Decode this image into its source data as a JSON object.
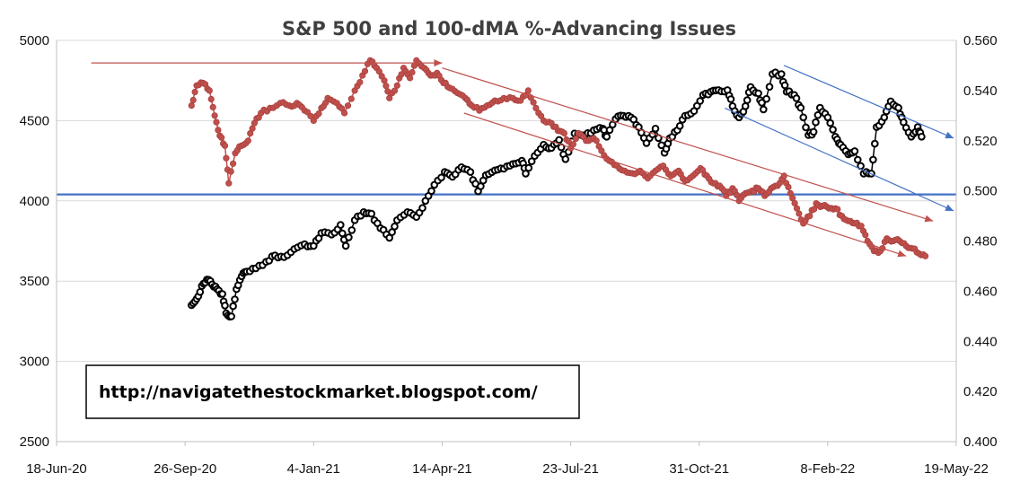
{
  "chart_data": {
    "type": "line",
    "title": "S&P 500 and 100-dMA %-Advancing Issues",
    "annotation": "http://navigatethestockmarket.blogspot.com/",
    "x_tick_labels": [
      "18-Jun-20",
      "26-Sep-20",
      "4-Jan-21",
      "14-Apr-21",
      "23-Jul-21",
      "31-Oct-21",
      "8-Feb-22",
      "19-May-22"
    ],
    "x_tick_dates": [
      "2020-06-18",
      "2020-09-26",
      "2021-01-04",
      "2021-04-14",
      "2021-07-23",
      "2021-10-31",
      "2022-02-08",
      "2022-05-19"
    ],
    "xlim": [
      "2020-06-18",
      "2022-05-19"
    ],
    "y_left_ticks": [
      "2500",
      "3000",
      "3500",
      "4000",
      "4500",
      "5000"
    ],
    "y_left_lim": [
      2500,
      5000
    ],
    "y_right_ticks": [
      "0.400",
      "0.420",
      "0.440",
      "0.460",
      "0.480",
      "0.500",
      "0.520",
      "0.540",
      "0.560"
    ],
    "y_right_lim": [
      0.4,
      0.56
    ],
    "grid": "horizontal",
    "legend": "none",
    "series": [
      {
        "axis": "left",
        "color": "#000000",
        "marker": "hollow-circle",
        "points": [
          [
            "2020-10-01",
            3350
          ],
          [
            "2020-10-05",
            3390
          ],
          [
            "2020-10-09",
            3470
          ],
          [
            "2020-10-13",
            3510
          ],
          [
            "2020-10-17",
            3480
          ],
          [
            "2020-10-21",
            3450
          ],
          [
            "2020-10-25",
            3420
          ],
          [
            "2020-10-28",
            3300
          ],
          [
            "2020-11-01",
            3280
          ],
          [
            "2020-11-05",
            3450
          ],
          [
            "2020-11-09",
            3530
          ],
          [
            "2020-11-13",
            3560
          ],
          [
            "2020-11-20",
            3580
          ],
          [
            "2020-11-28",
            3620
          ],
          [
            "2020-12-05",
            3660
          ],
          [
            "2020-12-12",
            3650
          ],
          [
            "2020-12-20",
            3700
          ],
          [
            "2020-12-28",
            3730
          ],
          [
            "2021-01-04",
            3720
          ],
          [
            "2021-01-10",
            3800
          ],
          [
            "2021-01-18",
            3790
          ],
          [
            "2021-01-25",
            3850
          ],
          [
            "2021-01-29",
            3720
          ],
          [
            "2021-02-05",
            3880
          ],
          [
            "2021-02-12",
            3930
          ],
          [
            "2021-02-18",
            3920
          ],
          [
            "2021-02-25",
            3830
          ],
          [
            "2021-03-04",
            3770
          ],
          [
            "2021-03-10",
            3880
          ],
          [
            "2021-03-18",
            3930
          ],
          [
            "2021-03-25",
            3900
          ],
          [
            "2021-04-01",
            4000
          ],
          [
            "2021-04-08",
            4100
          ],
          [
            "2021-04-16",
            4180
          ],
          [
            "2021-04-22",
            4150
          ],
          [
            "2021-04-29",
            4210
          ],
          [
            "2021-05-06",
            4180
          ],
          [
            "2021-05-12",
            4060
          ],
          [
            "2021-05-18",
            4160
          ],
          [
            "2021-05-25",
            4190
          ],
          [
            "2021-06-01",
            4200
          ],
          [
            "2021-06-08",
            4230
          ],
          [
            "2021-06-15",
            4250
          ],
          [
            "2021-06-18",
            4170
          ],
          [
            "2021-06-25",
            4280
          ],
          [
            "2021-07-02",
            4350
          ],
          [
            "2021-07-08",
            4330
          ],
          [
            "2021-07-14",
            4380
          ],
          [
            "2021-07-19",
            4260
          ],
          [
            "2021-07-26",
            4420
          ],
          [
            "2021-08-03",
            4410
          ],
          [
            "2021-08-10",
            4440
          ],
          [
            "2021-08-17",
            4450
          ],
          [
            "2021-08-20",
            4400
          ],
          [
            "2021-08-27",
            4510
          ],
          [
            "2021-09-02",
            4530
          ],
          [
            "2021-09-08",
            4520
          ],
          [
            "2021-09-14",
            4460
          ],
          [
            "2021-09-20",
            4360
          ],
          [
            "2021-09-27",
            4450
          ],
          [
            "2021-10-04",
            4300
          ],
          [
            "2021-10-08",
            4390
          ],
          [
            "2021-10-14",
            4440
          ],
          [
            "2021-10-20",
            4530
          ],
          [
            "2021-10-27",
            4560
          ],
          [
            "2021-11-03",
            4660
          ],
          [
            "2021-11-09",
            4680
          ],
          [
            "2021-11-15",
            4690
          ],
          [
            "2021-11-22",
            4690
          ],
          [
            "2021-11-26",
            4590
          ],
          [
            "2021-12-01",
            4520
          ],
          [
            "2021-12-06",
            4590
          ],
          [
            "2021-12-10",
            4710
          ],
          [
            "2021-12-16",
            4670
          ],
          [
            "2021-12-20",
            4570
          ],
          [
            "2021-12-27",
            4790
          ],
          [
            "2022-01-03",
            4790
          ],
          [
            "2022-01-07",
            4680
          ],
          [
            "2022-01-13",
            4660
          ],
          [
            "2022-01-18",
            4580
          ],
          [
            "2022-01-24",
            4410
          ],
          [
            "2022-01-28",
            4430
          ],
          [
            "2022-02-02",
            4580
          ],
          [
            "2022-02-08",
            4520
          ],
          [
            "2022-02-14",
            4400
          ],
          [
            "2022-02-18",
            4350
          ],
          [
            "2022-02-24",
            4290
          ],
          [
            "2022-03-01",
            4310
          ],
          [
            "2022-03-08",
            4170
          ],
          [
            "2022-03-14",
            4170
          ],
          [
            "2022-03-18",
            4460
          ],
          [
            "2022-03-24",
            4520
          ],
          [
            "2022-03-29",
            4620
          ],
          [
            "2022-04-04",
            4580
          ],
          [
            "2022-04-08",
            4490
          ],
          [
            "2022-04-14",
            4400
          ],
          [
            "2022-04-19",
            4460
          ],
          [
            "2022-04-22",
            4400
          ]
        ]
      },
      {
        "axis": "right",
        "color": "#c0504d",
        "marker": "filled-circle",
        "points": [
          [
            "2020-10-01",
            0.534
          ],
          [
            "2020-10-05",
            0.542
          ],
          [
            "2020-10-10",
            0.543
          ],
          [
            "2020-10-15",
            0.54
          ],
          [
            "2020-10-19",
            0.53
          ],
          [
            "2020-10-23",
            0.522
          ],
          [
            "2020-10-27",
            0.518
          ],
          [
            "2020-10-30",
            0.503
          ],
          [
            "2020-11-04",
            0.515
          ],
          [
            "2020-11-09",
            0.518
          ],
          [
            "2020-11-14",
            0.52
          ],
          [
            "2020-11-19",
            0.527
          ],
          [
            "2020-11-24",
            0.531
          ],
          [
            "2020-12-01",
            0.533
          ],
          [
            "2020-12-09",
            0.535
          ],
          [
            "2020-12-16",
            0.534
          ],
          [
            "2020-12-22",
            0.535
          ],
          [
            "2020-12-28",
            0.532
          ],
          [
            "2021-01-04",
            0.528
          ],
          [
            "2021-01-10",
            0.533
          ],
          [
            "2021-01-15",
            0.537
          ],
          [
            "2021-01-22",
            0.535
          ],
          [
            "2021-01-28",
            0.531
          ],
          [
            "2021-02-05",
            0.54
          ],
          [
            "2021-02-11",
            0.546
          ],
          [
            "2021-02-17",
            0.552
          ],
          [
            "2021-02-22",
            0.549
          ],
          [
            "2021-02-28",
            0.544
          ],
          [
            "2021-03-04",
            0.537
          ],
          [
            "2021-03-10",
            0.542
          ],
          [
            "2021-03-15",
            0.549
          ],
          [
            "2021-03-20",
            0.545
          ],
          [
            "2021-03-25",
            0.552
          ],
          [
            "2021-03-31",
            0.549
          ],
          [
            "2021-04-05",
            0.546
          ],
          [
            "2021-04-10",
            0.547
          ],
          [
            "2021-04-15",
            0.543
          ],
          [
            "2021-04-20",
            0.541
          ],
          [
            "2021-04-26",
            0.539
          ],
          [
            "2021-05-02",
            0.537
          ],
          [
            "2021-05-07",
            0.534
          ],
          [
            "2021-05-13",
            0.532
          ],
          [
            "2021-05-19",
            0.534
          ],
          [
            "2021-05-25",
            0.536
          ],
          [
            "2021-06-01",
            0.537
          ],
          [
            "2021-06-08",
            0.537
          ],
          [
            "2021-06-14",
            0.536
          ],
          [
            "2021-06-20",
            0.54
          ],
          [
            "2021-06-26",
            0.533
          ],
          [
            "2021-07-02",
            0.528
          ],
          [
            "2021-07-08",
            0.527
          ],
          [
            "2021-07-13",
            0.524
          ],
          [
            "2021-07-18",
            0.523
          ],
          [
            "2021-07-23",
            0.517
          ],
          [
            "2021-07-29",
            0.523
          ],
          [
            "2021-08-04",
            0.52
          ],
          [
            "2021-08-10",
            0.521
          ],
          [
            "2021-08-16",
            0.516
          ],
          [
            "2021-08-22",
            0.512
          ],
          [
            "2021-08-28",
            0.51
          ],
          [
            "2021-09-03",
            0.508
          ],
          [
            "2021-09-09",
            0.507
          ],
          [
            "2021-09-15",
            0.508
          ],
          [
            "2021-09-21",
            0.505
          ],
          [
            "2021-09-27",
            0.508
          ],
          [
            "2021-10-03",
            0.51
          ],
          [
            "2021-10-09",
            0.506
          ],
          [
            "2021-10-15",
            0.508
          ],
          [
            "2021-10-20",
            0.504
          ],
          [
            "2021-10-26",
            0.506
          ],
          [
            "2021-11-01",
            0.509
          ],
          [
            "2021-11-06",
            0.506
          ],
          [
            "2021-11-11",
            0.503
          ],
          [
            "2021-11-16",
            0.502
          ],
          [
            "2021-11-21",
            0.498
          ],
          [
            "2021-11-26",
            0.501
          ],
          [
            "2021-12-01",
            0.496
          ],
          [
            "2021-12-06",
            0.499
          ],
          [
            "2021-12-11",
            0.5
          ],
          [
            "2021-12-16",
            0.501
          ],
          [
            "2021-12-21",
            0.498
          ],
          [
            "2021-12-26",
            0.501
          ],
          [
            "2021-12-31",
            0.502
          ],
          [
            "2022-01-05",
            0.506
          ],
          [
            "2022-01-10",
            0.499
          ],
          [
            "2022-01-15",
            0.493
          ],
          [
            "2022-01-20",
            0.487
          ],
          [
            "2022-01-25",
            0.49
          ],
          [
            "2022-01-30",
            0.495
          ],
          [
            "2022-02-04",
            0.494
          ],
          [
            "2022-02-09",
            0.493
          ],
          [
            "2022-02-14",
            0.493
          ],
          [
            "2022-02-19",
            0.49
          ],
          [
            "2022-02-24",
            0.488
          ],
          [
            "2022-03-01",
            0.487
          ],
          [
            "2022-03-06",
            0.486
          ],
          [
            "2022-03-11",
            0.48
          ],
          [
            "2022-03-16",
            0.476
          ],
          [
            "2022-03-21",
            0.476
          ],
          [
            "2022-03-26",
            0.481
          ],
          [
            "2022-03-31",
            0.48
          ],
          [
            "2022-04-05",
            0.48
          ],
          [
            "2022-04-10",
            0.478
          ],
          [
            "2022-04-15",
            0.477
          ],
          [
            "2022-04-20",
            0.475
          ],
          [
            "2022-04-25",
            0.474
          ]
        ]
      }
    ],
    "reference_lines": [
      {
        "axis": "left",
        "value": 4040,
        "color": "#4472c4",
        "arrow": false
      }
    ],
    "trend_arrows": [
      {
        "axis": "right",
        "color": "#c0504d",
        "from": [
          "2020-07-15",
          0.551
        ],
        "to": [
          "2021-04-14",
          0.551
        ]
      },
      {
        "axis": "right",
        "color": "#c0504d",
        "from": [
          "2021-04-14",
          0.549
        ],
        "to": [
          "2022-05-01",
          0.488
        ]
      },
      {
        "axis": "right",
        "color": "#c0504d",
        "from": [
          "2021-05-01",
          0.531
        ],
        "to": [
          "2022-04-10",
          0.474
        ]
      },
      {
        "axis": "right",
        "color": "#4472c4",
        "from": [
          "2022-01-05",
          0.55
        ],
        "to": [
          "2022-05-17",
          0.521
        ]
      },
      {
        "axis": "right",
        "color": "#4472c4",
        "from": [
          "2021-11-20",
          0.533
        ],
        "to": [
          "2022-05-17",
          0.492
        ]
      }
    ]
  }
}
